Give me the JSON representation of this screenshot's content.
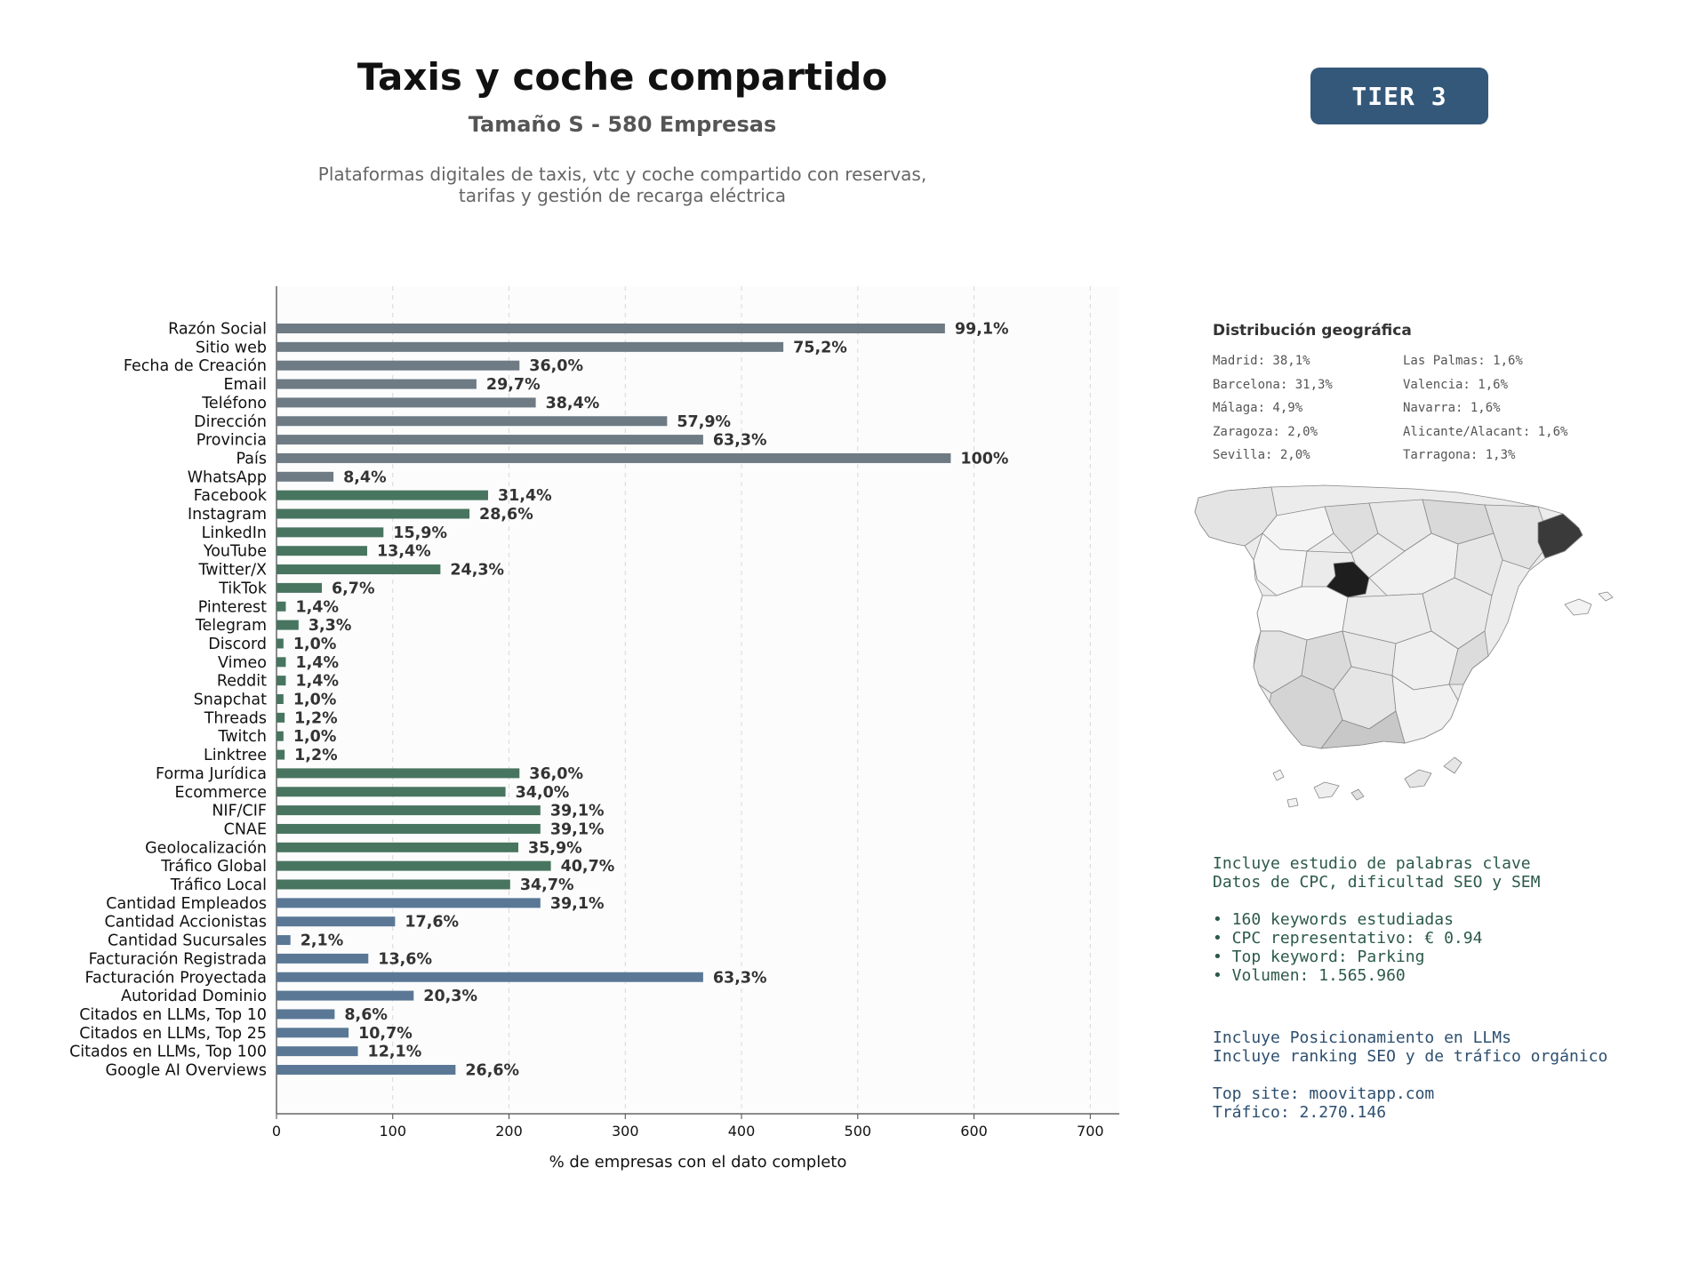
{
  "header": {
    "title": "Taxis y coche compartido",
    "subtitle": "Tamaño S - 580 Empresas",
    "description_line1": "Plataformas digitales de taxis, vtc y coche compartido con reservas,",
    "description_line2": "tarifas y gestión de recarga eléctrica",
    "tier_badge": "TIER 3"
  },
  "colors": {
    "gray_bar": "#6e7a84",
    "green_bar": "#487560",
    "blue_bar": "#5a7896",
    "tier_bg": "#34587a"
  },
  "chart_data": {
    "type": "bar",
    "orientation": "horizontal",
    "xlabel": "% de empresas con el dato completo",
    "xlim": [
      0,
      725
    ],
    "xticks": [
      0,
      100,
      200,
      300,
      400,
      500,
      600,
      700
    ],
    "grid": "vertical dashed",
    "categories": [
      "Razón Social",
      "Sitio web",
      "Fecha de Creación",
      "Email",
      "Teléfono",
      "Dirección",
      "Provincia",
      "País",
      "WhatsApp",
      "Facebook",
      "Instagram",
      "LinkedIn",
      "YouTube",
      "Twitter/X",
      "TikTok",
      "Pinterest",
      "Telegram",
      "Discord",
      "Vimeo",
      "Reddit",
      "Snapchat",
      "Threads",
      "Twitch",
      "Linktree",
      "Forma Jurídica",
      "Ecommerce",
      "NIF/CIF",
      "CNAE",
      "Geolocalización",
      "Tráfico Global",
      "Tráfico Local",
      "Cantidad Empleados",
      "Cantidad Accionistas",
      "Cantidad Sucursales",
      "Facturación Registrada",
      "Facturación Proyectada",
      "Autoridad Dominio",
      "Citados en LLMs, Top 10",
      "Citados en LLMs, Top 25",
      "Citados en LLMs, Top 100",
      "Google AI Overviews"
    ],
    "values": [
      575,
      436,
      209,
      172,
      223,
      336,
      367,
      580,
      49,
      182,
      166,
      92,
      78,
      141,
      39,
      8,
      19,
      6,
      8,
      8,
      6,
      7,
      6,
      7,
      209,
      197,
      227,
      227,
      208,
      236,
      201,
      227,
      102,
      12,
      79,
      367,
      118,
      50,
      62,
      70,
      154
    ],
    "data_labels": [
      "99,1%",
      "75,2%",
      "36,0%",
      "29,7%",
      "38,4%",
      "57,9%",
      "63,3%",
      "100%",
      "8,4%",
      "31,4%",
      "28,6%",
      "15,9%",
      "13,4%",
      "24,3%",
      "6,7%",
      "1,4%",
      "3,3%",
      "1,0%",
      "1,4%",
      "1,4%",
      "1,0%",
      "1,2%",
      "1,0%",
      "1,2%",
      "36,0%",
      "34,0%",
      "39,1%",
      "39,1%",
      "35,9%",
      "40,7%",
      "34,7%",
      "39,1%",
      "17,6%",
      "2,1%",
      "13,6%",
      "63,3%",
      "20,3%",
      "8,6%",
      "10,7%",
      "12,1%",
      "26,6%"
    ],
    "groups": [
      "gray",
      "gray",
      "gray",
      "gray",
      "gray",
      "gray",
      "gray",
      "gray",
      "gray",
      "green",
      "green",
      "green",
      "green",
      "green",
      "green",
      "green",
      "green",
      "green",
      "green",
      "green",
      "green",
      "green",
      "green",
      "green",
      "green",
      "green",
      "green",
      "green",
      "green",
      "green",
      "green",
      "blue",
      "blue",
      "blue",
      "blue",
      "blue",
      "blue",
      "blue",
      "blue",
      "blue",
      "blue"
    ]
  },
  "geo": {
    "title": "Distribución geográfica",
    "items": [
      "Madrid: 38,1%",
      "Las Palmas: 1,6%",
      "Barcelona: 31,3%",
      "Valencia: 1,6%",
      "Málaga: 4,9%",
      "Navarra: 1,6%",
      "Zaragoza: 2,0%",
      "Alicante/Alacant: 1,6%",
      "Sevilla: 2,0%",
      "Tarragona: 1,3%"
    ]
  },
  "keywords": {
    "line1": "Incluye estudio de palabras clave",
    "line2": "Datos de CPC, dificultad SEO y SEM",
    "bullet1": "• 160 keywords estudiadas",
    "bullet2": "• CPC representativo: € 0.94",
    "bullet3": "• Top keyword: Parking",
    "bullet4": "• Volumen: 1.565.960"
  },
  "llm": {
    "line1": "Incluye Posicionamiento en LLMs",
    "line2": "Incluye ranking SEO y de tráfico orgánico",
    "line3": "Top site: moovitapp.com",
    "line4": "Tráfico: 2.270.146"
  }
}
